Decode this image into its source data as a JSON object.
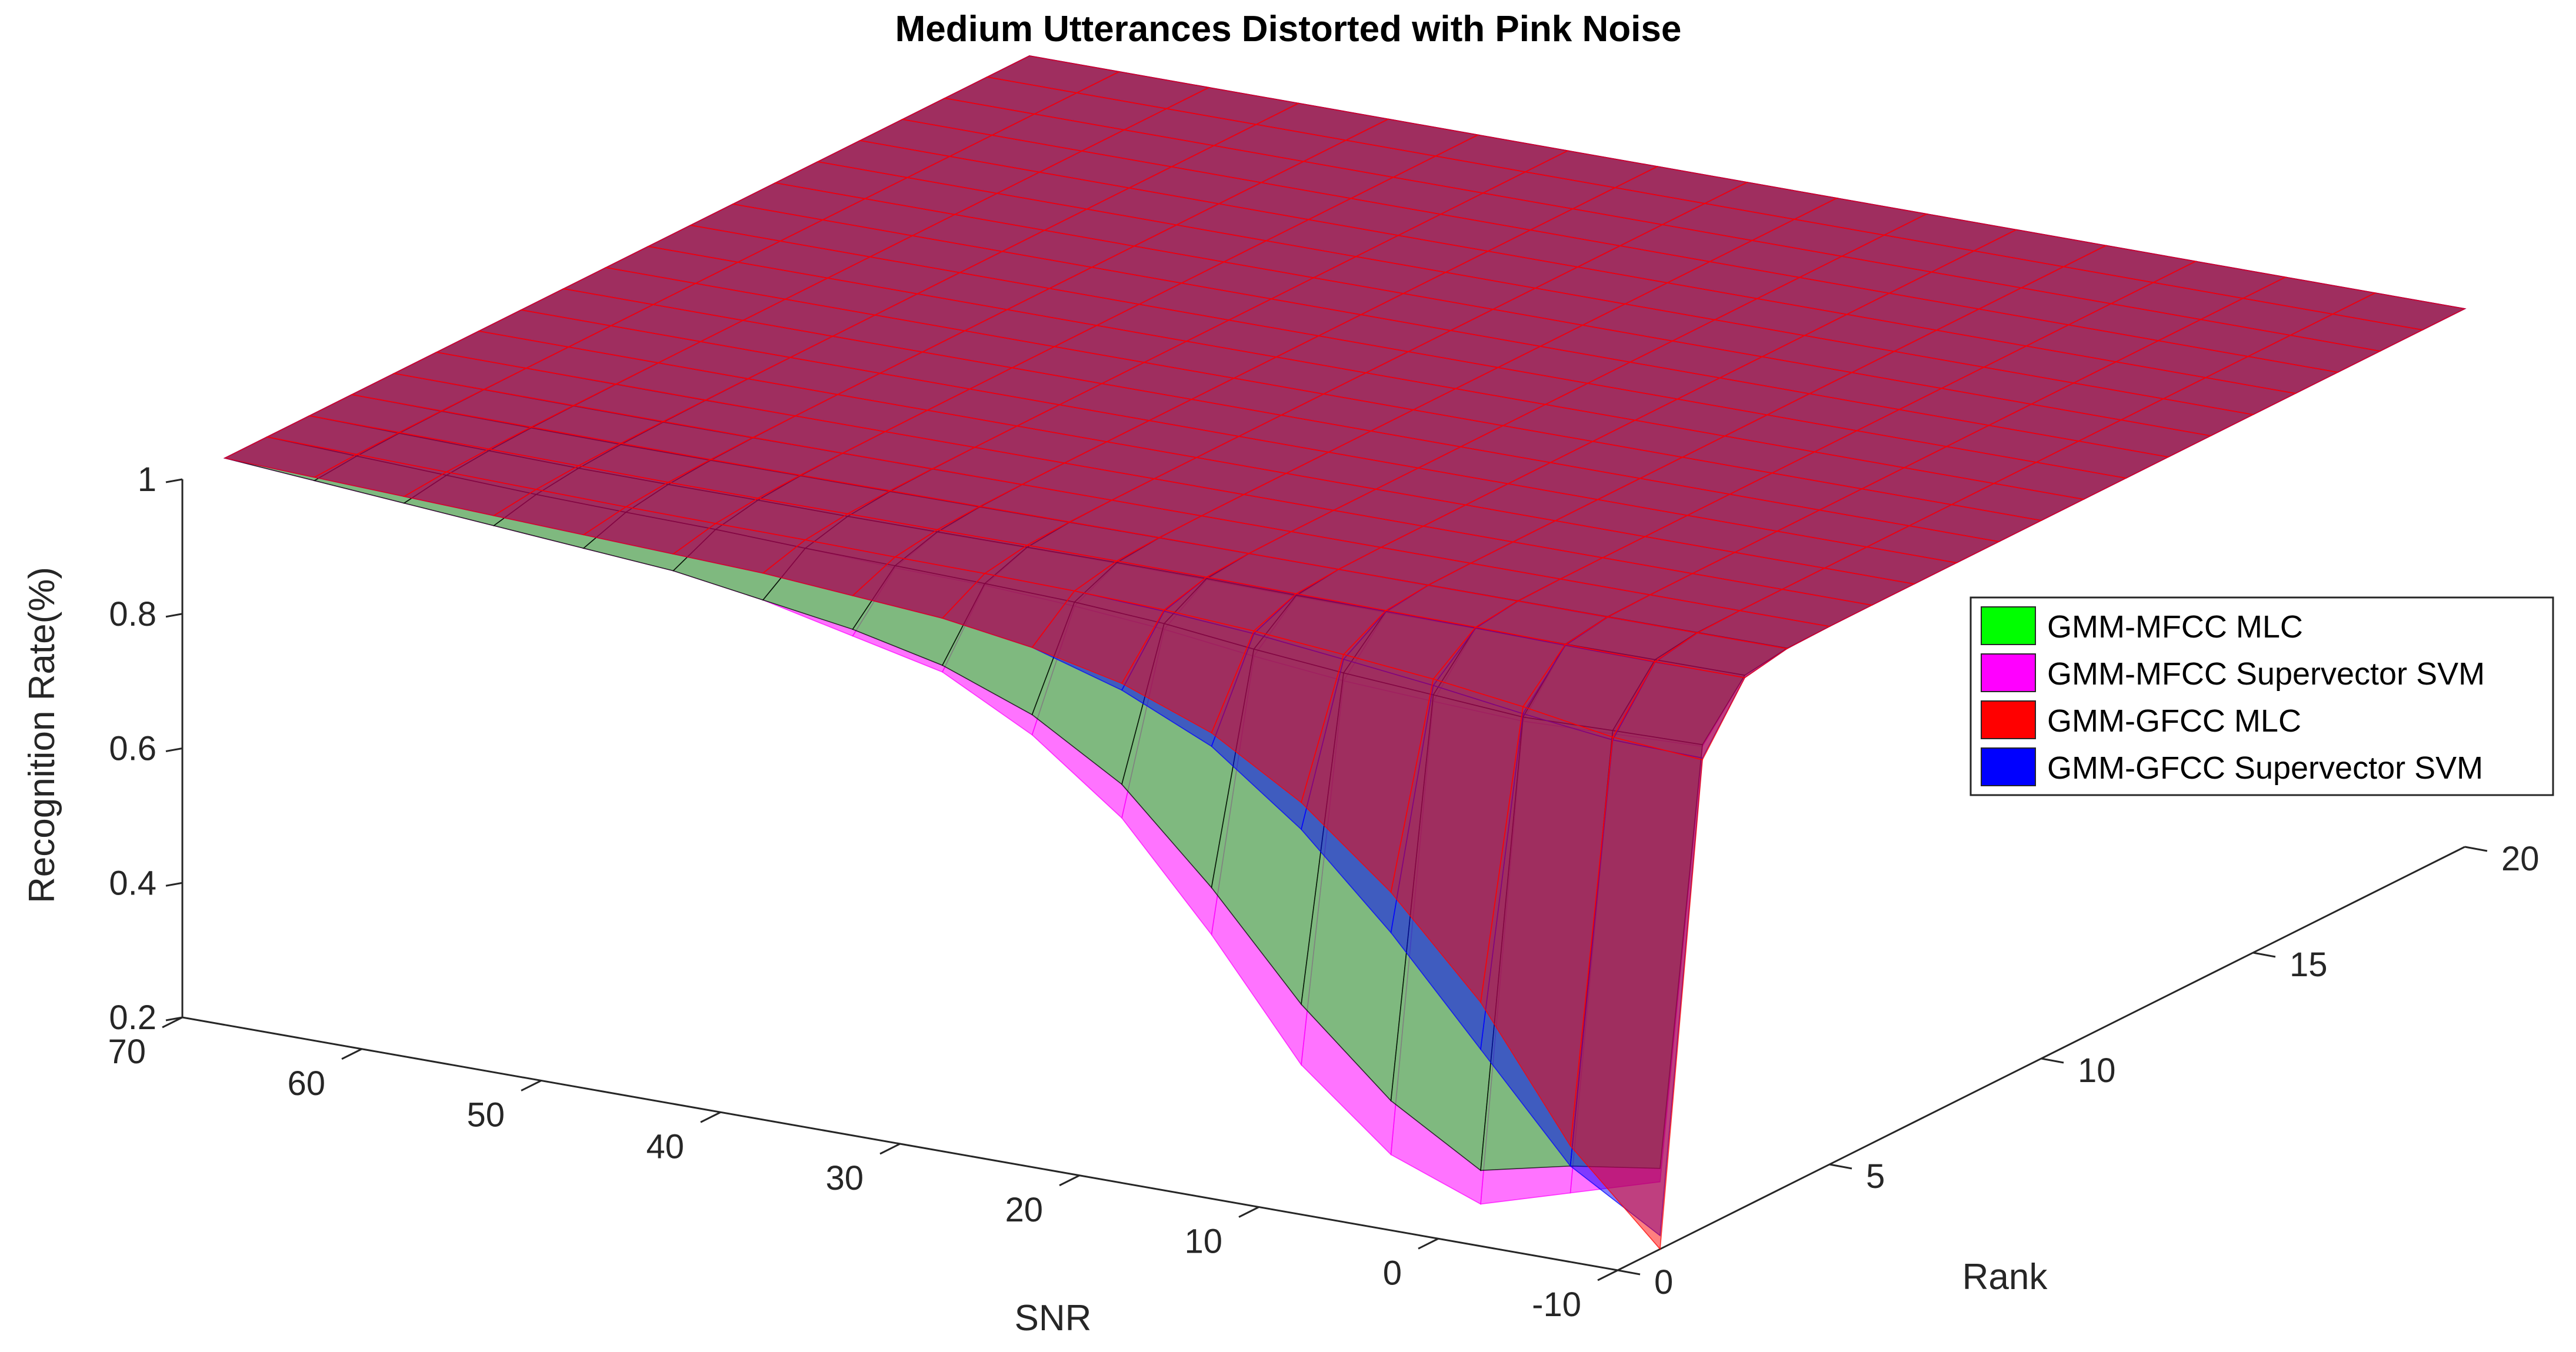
{
  "chart_data": {
    "type": "surface3d",
    "title": "Medium Utterances Distorted with Pink Noise",
    "xlabel": "SNR",
    "ylabel": "Rank",
    "zlabel": "Recognition Rate(%)",
    "xlim": [
      -10,
      70
    ],
    "ylim": [
      0,
      20
    ],
    "zlim": [
      0.2,
      1
    ],
    "xticks": [
      "70",
      "60",
      "50",
      "40",
      "30",
      "20",
      "10",
      "0",
      "-10"
    ],
    "yticks": [
      "0",
      "5",
      "10",
      "15",
      "20"
    ],
    "zticks": [
      "0.2",
      "0.4",
      "0.6",
      "0.8",
      "1"
    ],
    "snr": [
      70,
      65,
      60,
      55,
      50,
      45,
      40,
      35,
      30,
      25,
      20,
      15,
      10,
      5,
      0,
      -5,
      -10
    ],
    "rank": [
      1,
      2,
      3,
      4,
      5,
      6,
      7,
      8,
      9,
      10,
      11,
      12,
      13,
      14,
      15,
      16,
      17,
      18,
      19,
      20
    ],
    "series": [
      {
        "name": "GMM-MFCC MLC",
        "color": "#00ff00",
        "edge": "#000000",
        "opacity": 0.5,
        "rank1": [
          1.0,
          0.99,
          0.98,
          0.97,
          0.96,
          0.95,
          0.93,
          0.91,
          0.88,
          0.83,
          0.75,
          0.62,
          0.47,
          0.35,
          0.27,
          0.3,
          0.32
        ],
        "decay": [
          0.5,
          0.5,
          0.5,
          0.5,
          0.45,
          0.4,
          0.35,
          0.3,
          0.25,
          0.2,
          0.17,
          0.15,
          0.13,
          0.12,
          0.12,
          0.12,
          0.12
        ]
      },
      {
        "name": "GMM-MFCC Supervector SVM",
        "color": "#ff00ff",
        "edge": "#ff00ff",
        "opacity": 0.55,
        "rank1": [
          1.0,
          0.99,
          0.98,
          0.97,
          0.96,
          0.95,
          0.93,
          0.9,
          0.87,
          0.8,
          0.7,
          0.55,
          0.38,
          0.27,
          0.22,
          0.26,
          0.3
        ],
        "decay": [
          0.5,
          0.5,
          0.5,
          0.5,
          0.45,
          0.4,
          0.35,
          0.3,
          0.25,
          0.2,
          0.17,
          0.15,
          0.13,
          0.12,
          0.12,
          0.12,
          0.12
        ]
      },
      {
        "name": "GMM-GFCC MLC",
        "color": "#ff0000",
        "edge": "#ff0000",
        "opacity": 0.5,
        "rank1": [
          1.0,
          0.995,
          0.99,
          0.985,
          0.98,
          0.975,
          0.97,
          0.96,
          0.95,
          0.93,
          0.9,
          0.85,
          0.77,
          0.66,
          0.52,
          0.33,
          0.2
        ],
        "decay": [
          0.5,
          0.5,
          0.5,
          0.5,
          0.5,
          0.45,
          0.4,
          0.35,
          0.3,
          0.25,
          0.22,
          0.2,
          0.18,
          0.16,
          0.15,
          0.14,
          0.13
        ]
      },
      {
        "name": "GMM-GFCC Supervector SVM",
        "color": "#0000ff",
        "edge": "#0000ff",
        "opacity": 0.5,
        "rank1": [
          1.0,
          0.995,
          0.99,
          0.985,
          0.98,
          0.975,
          0.97,
          0.96,
          0.95,
          0.93,
          0.89,
          0.83,
          0.73,
          0.6,
          0.45,
          0.3,
          0.22
        ],
        "decay": [
          0.5,
          0.5,
          0.5,
          0.5,
          0.5,
          0.45,
          0.4,
          0.35,
          0.3,
          0.25,
          0.22,
          0.2,
          0.18,
          0.16,
          0.15,
          0.14,
          0.13
        ]
      }
    ],
    "legend_position": "right"
  }
}
